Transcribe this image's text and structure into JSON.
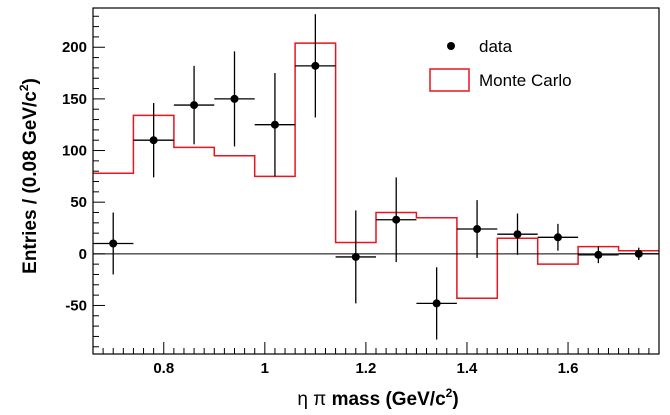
{
  "chart_data": {
    "type": "histogram",
    "xlabel_prefix": "η π",
    "xlabel_main": " mass (GeV/c",
    "xlabel_sup": "2",
    "xlabel_suffix": ")",
    "ylabel_main": "Entries / (0.08 GeV/c",
    "ylabel_sup": "2",
    "ylabel_suffix": ")",
    "xlim": [
      0.66,
      1.78
    ],
    "ylim": [
      -97,
      238
    ],
    "x_ticks": [
      0.8,
      1.0,
      1.2,
      1.4,
      1.6
    ],
    "x_tick_labels": [
      "0.8",
      "1",
      "1.2",
      "1.4",
      "1.6"
    ],
    "y_ticks": [
      -50,
      0,
      50,
      100,
      150,
      200
    ],
    "y_tick_labels": [
      "-50",
      "0",
      "50",
      "100",
      "150",
      "200"
    ],
    "legend": {
      "placement": "top-right",
      "entries": [
        {
          "label": "data",
          "symbol": "marker"
        },
        {
          "label": "Monte Carlo",
          "symbol": "box"
        }
      ]
    },
    "series": [
      {
        "name": "data",
        "kind": "points_with_errors",
        "color": "#000000",
        "x": [
          0.7,
          0.78,
          0.86,
          0.94,
          1.02,
          1.1,
          1.18,
          1.26,
          1.34,
          1.42,
          1.5,
          1.58,
          1.66,
          1.74
        ],
        "y": [
          10,
          110,
          144,
          150,
          125,
          182,
          -3,
          33,
          -48,
          24,
          19,
          16,
          -1,
          0
        ],
        "y_err": [
          30,
          36,
          38,
          46,
          50,
          50,
          45,
          41,
          35,
          28,
          20,
          13,
          8,
          6
        ],
        "x_halfwidth": 0.04
      },
      {
        "name": "Monte Carlo",
        "kind": "step",
        "color": "#e8141e",
        "bin_edges": [
          0.66,
          0.74,
          0.82,
          0.9,
          0.98,
          1.06,
          1.14,
          1.22,
          1.3,
          1.38,
          1.46,
          1.54,
          1.62,
          1.7,
          1.78
        ],
        "values": [
          78,
          134,
          103,
          95,
          75,
          204,
          11,
          40,
          35,
          -43,
          15,
          -10,
          7,
          3
        ]
      }
    ]
  }
}
